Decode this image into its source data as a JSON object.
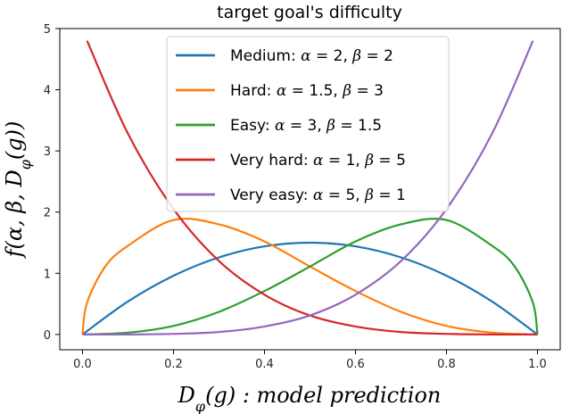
{
  "chart_data": {
    "type": "line",
    "title": "target goal's difficulty",
    "xlabel": "D_φ(g) : model prediction",
    "ylabel": "f(α, β, D_φ(g))",
    "xlim": [
      -0.05,
      1.05
    ],
    "ylim": [
      -0.25,
      5.0
    ],
    "xticks": [
      "0.0",
      "0.2",
      "0.4",
      "0.6",
      "0.8",
      "1.0"
    ],
    "yticks": [
      "0",
      "1",
      "2",
      "3",
      "4",
      "5"
    ],
    "legend_position": "top-center",
    "grid": false,
    "series": [
      {
        "name": "Medium: α = 2, β = 2",
        "color": "#1f77b4",
        "x": [
          0,
          0.1,
          0.2,
          0.3,
          0.4,
          0.5,
          0.6,
          0.7,
          0.8,
          0.9,
          1.0
        ],
        "y": [
          0,
          0.54,
          0.96,
          1.26,
          1.44,
          1.5,
          1.44,
          1.26,
          0.96,
          0.54,
          0
        ]
      },
      {
        "name": "Hard: α = 1.5, β = 3",
        "color": "#ff7f0e",
        "x": [
          0,
          0.01,
          0.05,
          0.1,
          0.2,
          0.3,
          0.4,
          0.5,
          0.6,
          0.7,
          0.8,
          0.9,
          1.0
        ],
        "y": [
          0,
          0.52,
          1.11,
          1.45,
          1.87,
          1.8,
          1.52,
          1.11,
          0.71,
          0.37,
          0.14,
          0.03,
          0
        ]
      },
      {
        "name": "Easy: α = 3, β = 1.5",
        "color": "#2ca02c",
        "x": [
          0,
          0.1,
          0.2,
          0.3,
          0.4,
          0.5,
          0.6,
          0.7,
          0.8,
          0.9,
          0.95,
          0.99,
          1.0
        ],
        "y": [
          0,
          0.03,
          0.14,
          0.37,
          0.71,
          1.11,
          1.52,
          1.8,
          1.87,
          1.45,
          1.11,
          0.52,
          0
        ]
      },
      {
        "name": "Very hard: α = 1, β = 5",
        "color": "#d62728",
        "x": [
          0.01,
          0.1,
          0.2,
          0.3,
          0.4,
          0.5,
          0.6,
          0.7,
          0.8,
          0.9,
          1.0
        ],
        "y": [
          4.8,
          3.28,
          2.05,
          1.2,
          0.65,
          0.31,
          0.13,
          0.04,
          0.01,
          0,
          0
        ]
      },
      {
        "name": "Very easy: α = 5, β = 1",
        "color": "#9467bd",
        "x": [
          0,
          0.1,
          0.2,
          0.3,
          0.4,
          0.5,
          0.6,
          0.7,
          0.8,
          0.9,
          0.99
        ],
        "y": [
          0,
          0,
          0.01,
          0.04,
          0.13,
          0.31,
          0.65,
          1.2,
          2.05,
          3.28,
          4.8
        ]
      }
    ]
  }
}
